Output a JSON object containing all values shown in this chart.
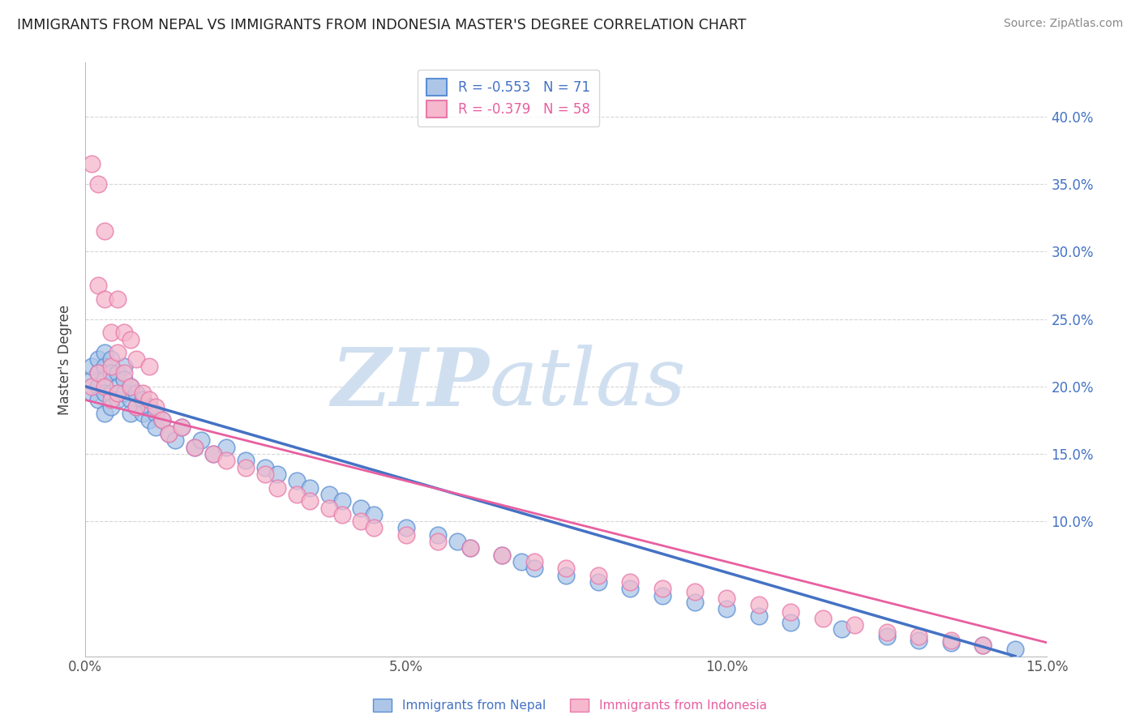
{
  "title": "IMMIGRANTS FROM NEPAL VS IMMIGRANTS FROM INDONESIA MASTER'S DEGREE CORRELATION CHART",
  "source": "Source: ZipAtlas.com",
  "ylabel": "Master's Degree",
  "xlim": [
    0.0,
    0.15
  ],
  "ylim": [
    0.0,
    0.44
  ],
  "nepal_R": -0.553,
  "nepal_N": 71,
  "indonesia_R": -0.379,
  "indonesia_N": 58,
  "nepal_color": "#adc6e8",
  "nepal_edge_color": "#5b8fd4",
  "indonesia_color": "#f5b8cc",
  "indonesia_edge_color": "#e87aaa",
  "nepal_line_color": "#4472c4",
  "indonesia_line_color": "#e85fa0",
  "watermark_color": "#d0dff0",
  "nepal_x": [
    0.001,
    0.001,
    0.001,
    0.002,
    0.002,
    0.002,
    0.002,
    0.003,
    0.003,
    0.003,
    0.003,
    0.003,
    0.004,
    0.004,
    0.004,
    0.004,
    0.005,
    0.005,
    0.005,
    0.006,
    0.006,
    0.006,
    0.007,
    0.007,
    0.007,
    0.008,
    0.008,
    0.009,
    0.009,
    0.01,
    0.01,
    0.011,
    0.011,
    0.012,
    0.013,
    0.014,
    0.015,
    0.017,
    0.018,
    0.02,
    0.022,
    0.025,
    0.028,
    0.03,
    0.033,
    0.035,
    0.038,
    0.04,
    0.043,
    0.045,
    0.05,
    0.055,
    0.058,
    0.06,
    0.065,
    0.068,
    0.07,
    0.075,
    0.08,
    0.085,
    0.09,
    0.095,
    0.1,
    0.105,
    0.11,
    0.118,
    0.125,
    0.13,
    0.135,
    0.14,
    0.145
  ],
  "nepal_y": [
    0.205,
    0.195,
    0.215,
    0.22,
    0.21,
    0.2,
    0.19,
    0.225,
    0.215,
    0.205,
    0.195,
    0.18,
    0.22,
    0.21,
    0.195,
    0.185,
    0.21,
    0.2,
    0.19,
    0.215,
    0.205,
    0.195,
    0.2,
    0.19,
    0.18,
    0.195,
    0.185,
    0.19,
    0.18,
    0.185,
    0.175,
    0.18,
    0.17,
    0.175,
    0.165,
    0.16,
    0.17,
    0.155,
    0.16,
    0.15,
    0.155,
    0.145,
    0.14,
    0.135,
    0.13,
    0.125,
    0.12,
    0.115,
    0.11,
    0.105,
    0.095,
    0.09,
    0.085,
    0.08,
    0.075,
    0.07,
    0.065,
    0.06,
    0.055,
    0.05,
    0.045,
    0.04,
    0.035,
    0.03,
    0.025,
    0.02,
    0.015,
    0.012,
    0.01,
    0.008,
    0.005
  ],
  "indonesia_x": [
    0.001,
    0.001,
    0.002,
    0.002,
    0.002,
    0.003,
    0.003,
    0.003,
    0.004,
    0.004,
    0.004,
    0.005,
    0.005,
    0.005,
    0.006,
    0.006,
    0.007,
    0.007,
    0.008,
    0.008,
    0.009,
    0.01,
    0.01,
    0.011,
    0.012,
    0.013,
    0.015,
    0.017,
    0.02,
    0.022,
    0.025,
    0.028,
    0.03,
    0.033,
    0.035,
    0.038,
    0.04,
    0.043,
    0.045,
    0.05,
    0.055,
    0.06,
    0.065,
    0.07,
    0.075,
    0.08,
    0.085,
    0.09,
    0.095,
    0.1,
    0.105,
    0.11,
    0.115,
    0.12,
    0.125,
    0.13,
    0.135,
    0.14
  ],
  "indonesia_y": [
    0.2,
    0.365,
    0.35,
    0.275,
    0.21,
    0.315,
    0.265,
    0.2,
    0.24,
    0.215,
    0.19,
    0.265,
    0.225,
    0.195,
    0.24,
    0.21,
    0.235,
    0.2,
    0.22,
    0.185,
    0.195,
    0.215,
    0.19,
    0.185,
    0.175,
    0.165,
    0.17,
    0.155,
    0.15,
    0.145,
    0.14,
    0.135,
    0.125,
    0.12,
    0.115,
    0.11,
    0.105,
    0.1,
    0.095,
    0.09,
    0.085,
    0.08,
    0.075,
    0.07,
    0.065,
    0.06,
    0.055,
    0.05,
    0.048,
    0.043,
    0.038,
    0.033,
    0.028,
    0.023,
    0.018,
    0.015,
    0.012,
    0.008
  ]
}
